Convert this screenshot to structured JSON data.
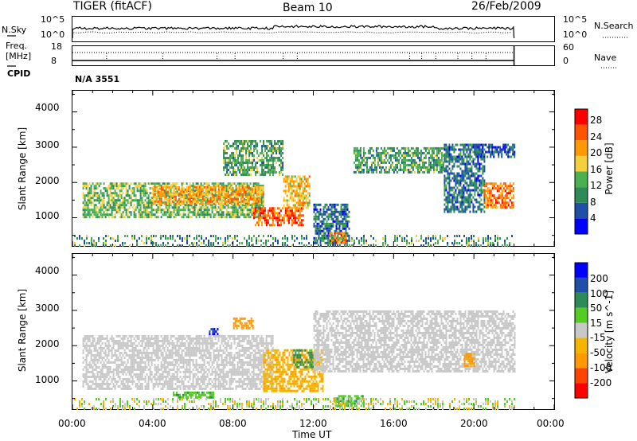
{
  "header": {
    "title": "TIGER (fitACF)",
    "beam": "Beam 10",
    "date": "26/Feb/2009"
  },
  "top_panel": {
    "left_label": "N.Sky",
    "right_label": "N.Search",
    "left_ticks": [
      "10^5",
      "10^0"
    ],
    "right_ticks": [
      "10^5",
      "10^0"
    ]
  },
  "freq_panel": {
    "left_label_1": "Freq.",
    "left_label_2": "[MHz]",
    "left_ticks": [
      "18",
      "8"
    ],
    "right_ticks": [
      "60",
      "0"
    ],
    "right_label": "Nave"
  },
  "cpid": {
    "label": "CPID",
    "value": "N/A 3551"
  },
  "colors": {
    "power": [
      "#0000ff",
      "#1f4fa8",
      "#2e8b57",
      "#4caf50",
      "#f4d03f",
      "#ff9900",
      "#ff5500",
      "#ff0000"
    ],
    "velocity": [
      "#ff0000",
      "#ff4400",
      "#ff9900",
      "#f4b400",
      "#c8c8c8",
      "#55cc22",
      "#2e8b57",
      "#1f4fa8",
      "#0000ff"
    ]
  },
  "chart_data": [
    {
      "type": "heatmap",
      "name": "power",
      "ylabel": "Slant Range [km]",
      "y_ticks": [
        "1000",
        "2000",
        "3000",
        "4000"
      ],
      "ylim": [
        200,
        4600
      ],
      "xlim": [
        "00:00",
        "24:00"
      ],
      "colorbar_label": "Power [dB]",
      "colorbar_ticks": [
        "4",
        "8",
        "12",
        "16",
        "20",
        "24",
        "28"
      ],
      "features": [
        {
          "t0": 0.5,
          "t1": 9.5,
          "r0": 1000,
          "r1": 2000,
          "value": 14
        },
        {
          "t0": 4.0,
          "t1": 9.5,
          "r0": 1400,
          "r1": 1900,
          "value": 22
        },
        {
          "t0": 9.0,
          "t1": 11.5,
          "r0": 800,
          "r1": 1300,
          "value": 26
        },
        {
          "t0": 10.5,
          "t1": 11.8,
          "r0": 1300,
          "r1": 2200,
          "value": 20
        },
        {
          "t0": 12.0,
          "t1": 13.8,
          "r0": 300,
          "r1": 1400,
          "value": 8
        },
        {
          "t0": 12.8,
          "t1": 13.6,
          "r0": 300,
          "r1": 600,
          "value": 24
        },
        {
          "t0": 7.5,
          "t1": 10.5,
          "r0": 2200,
          "r1": 3200,
          "value": 12
        },
        {
          "t0": 14.0,
          "t1": 18.5,
          "r0": 2300,
          "r1": 3000,
          "value": 12
        },
        {
          "t0": 18.5,
          "t1": 20.5,
          "r0": 1200,
          "r1": 3100,
          "value": 8
        },
        {
          "t0": 20.5,
          "t1": 22.0,
          "r0": 1300,
          "r1": 2000,
          "value": 24
        },
        {
          "t0": 20.0,
          "t1": 22.0,
          "r0": 2700,
          "r1": 3100,
          "value": 6
        }
      ]
    },
    {
      "type": "heatmap",
      "name": "velocity",
      "ylabel": "Slant Range [km]",
      "y_ticks": [
        "1000",
        "2000",
        "3000",
        "4000"
      ],
      "ylim": [
        200,
        4600
      ],
      "x_ticks": [
        "00:00",
        "04:00",
        "08:00",
        "12:00",
        "16:00",
        "20:00",
        "00:00"
      ],
      "xlim": [
        "00:00",
        "24:00"
      ],
      "xlabel": "Time UT",
      "colorbar_label": "Velocity [m s^-1]",
      "colorbar_ticks": [
        "-200",
        "-100",
        "-50",
        "-15",
        "15",
        "50",
        "100",
        "200"
      ],
      "features": [
        {
          "t0": 0.5,
          "t1": 10.0,
          "r0": 800,
          "r1": 2300,
          "value": 0
        },
        {
          "t0": 9.5,
          "t1": 12.5,
          "r0": 700,
          "r1": 1900,
          "value": -40
        },
        {
          "t0": 11.0,
          "t1": 12.0,
          "r0": 1400,
          "r1": 1900,
          "value": 60
        },
        {
          "t0": 12.0,
          "t1": 22.0,
          "r0": 1300,
          "r1": 3000,
          "value": 0
        },
        {
          "t0": 8.0,
          "t1": 9.0,
          "r0": 2500,
          "r1": 2800,
          "value": -80
        },
        {
          "t0": 6.8,
          "t1": 7.2,
          "r0": 2350,
          "r1": 2500,
          "value": 200
        },
        {
          "t0": 13.0,
          "t1": 14.5,
          "r0": 300,
          "r1": 600,
          "value": 40
        },
        {
          "t0": 5.0,
          "t1": 7.0,
          "r0": 500,
          "r1": 700,
          "value": 40
        },
        {
          "t0": 19.5,
          "t1": 20.0,
          "r0": 1400,
          "r1": 1800,
          "value": -60
        }
      ]
    }
  ]
}
